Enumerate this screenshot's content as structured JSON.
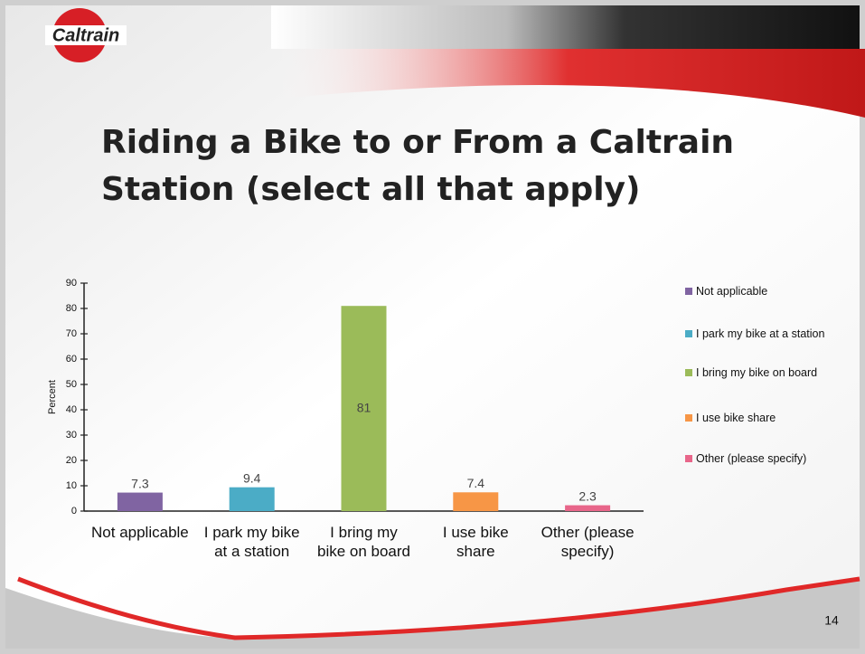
{
  "logo": "Caltrain",
  "page_number": "14",
  "chart_data": {
    "type": "bar",
    "title": "Riding a Bike to or From a Caltrain Station (select all that apply)",
    "y_label": "Percent",
    "categories": [
      "Not applicable",
      "I park my bike at a station",
      "I bring my bike on board",
      "I use bike share",
      "Other (please specify)"
    ],
    "series": [
      {
        "name": "Not applicable",
        "color": "#8064a2"
      },
      {
        "name": "I park my bike at a station",
        "color": "#4bacc6"
      },
      {
        "name": "I bring my bike on board",
        "color": "#9bbb59"
      },
      {
        "name": "I use bike share",
        "color": "#f79646"
      },
      {
        "name": "Other (please specify)",
        "color": "#e8668a"
      }
    ],
    "values": [
      7.3,
      9.4,
      81,
      7.4,
      2.3
    ],
    "ylim": [
      0,
      90
    ],
    "yticks": [
      0,
      10,
      20,
      30,
      40,
      50,
      60,
      70,
      80,
      90
    ],
    "grid": false,
    "legend": "right"
  }
}
